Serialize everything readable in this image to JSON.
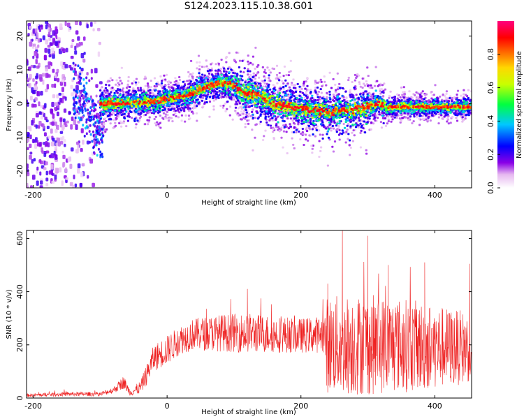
{
  "figure": {
    "title": "S124.2023.115.10.38.G01"
  },
  "colors": {
    "snr_line": "#ee2020",
    "frame": "#000000"
  },
  "chart_data": [
    {
      "type": "heatmap",
      "xlabel": "Height of straight line (km)",
      "ylabel": "Frequency (Hz)",
      "xlim": [
        -210,
        455
      ],
      "ylim": [
        -25,
        24.5
      ],
      "xticks": [
        -200,
        0,
        200,
        400
      ],
      "yticks": [
        -20,
        -10,
        0,
        10,
        20
      ],
      "colorbar": {
        "label": "Normalized spectral amplitude",
        "ticks": [
          0.0,
          0.2,
          0.4,
          0.6,
          0.8
        ],
        "range": [
          0,
          1
        ],
        "colormap": "rainbow (white-purple-blue-cyan-green-yellow-red-magenta)"
      },
      "ridge": {
        "description": "frequency of peak spectral amplitude vs height",
        "x": [
          -95,
          -60,
          -20,
          0,
          30,
          55,
          75,
          95,
          115,
          140,
          160,
          180,
          200,
          220,
          240,
          260,
          280,
          300,
          315,
          330,
          360,
          400,
          455
        ],
        "y": [
          0,
          0,
          0.5,
          1.5,
          2.5,
          4.5,
          6,
          6,
          3.5,
          2,
          0,
          -1,
          -1.5,
          -2,
          -2.5,
          -2,
          -2,
          -1,
          0,
          -1,
          -1,
          -1,
          -1
        ]
      },
      "noise_region": {
        "x_range": [
          -210,
          -95
        ],
        "y_range": [
          -25,
          24.5
        ]
      }
    },
    {
      "type": "line",
      "xlabel": "Height of straight line (km)",
      "ylabel": "SNR (10 * v/v)",
      "xlim": [
        -210,
        455
      ],
      "ylim": [
        0,
        630
      ],
      "xticks": [
        -200,
        0,
        200,
        400
      ],
      "yticks": [
        0,
        200,
        400,
        600
      ],
      "series": [
        {
          "envelope_x": [
            -210,
            -150,
            -100,
            -80,
            -65,
            -55,
            -40,
            -30,
            -20,
            0,
            20,
            40,
            80,
            120,
            160,
            200,
            235,
            238,
            260,
            300,
            340,
            380,
            420,
            455
          ],
          "envelope_center": [
            10,
            15,
            15,
            30,
            60,
            20,
            40,
            90,
            150,
            180,
            220,
            240,
            245,
            245,
            240,
            235,
            240,
            200,
            200,
            200,
            200,
            195,
            190,
            190
          ],
          "envelope_spread": [
            6,
            8,
            8,
            12,
            25,
            12,
            25,
            40,
            50,
            55,
            55,
            60,
            70,
            75,
            70,
            65,
            70,
            180,
            190,
            190,
            180,
            170,
            150,
            130
          ],
          "peaks": [
            [
              262,
              630
            ],
            [
              240,
              430
            ],
            [
              120,
              410
            ],
            [
              300,
              610
            ],
            [
              385,
              510
            ],
            [
              330,
              500
            ]
          ]
        }
      ]
    }
  ]
}
